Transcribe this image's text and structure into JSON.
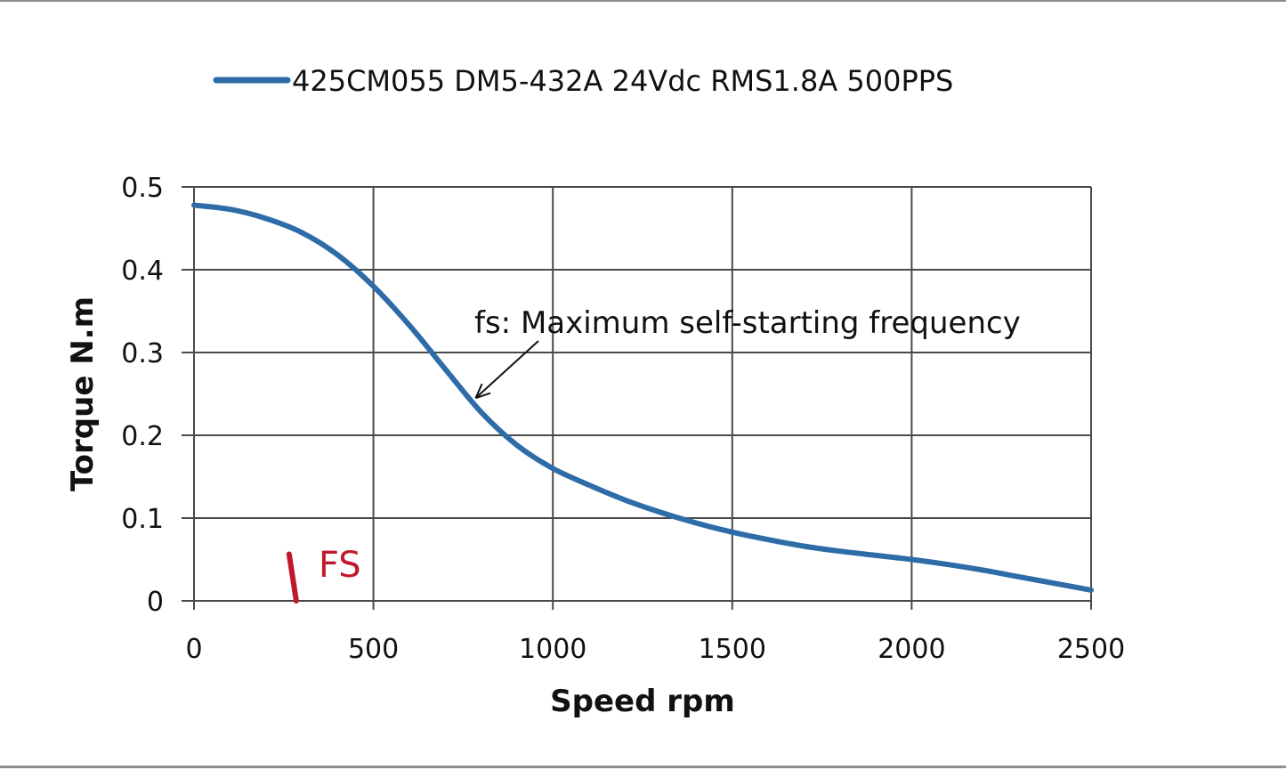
{
  "chart_data": {
    "type": "line",
    "title": "",
    "xlabel": "Speed rpm",
    "ylabel": "Torque N.m",
    "xlim": [
      0,
      2500
    ],
    "ylim": [
      0,
      0.5
    ],
    "x_ticks": [
      "0",
      "500",
      "1000",
      "1500",
      "2000",
      "2500"
    ],
    "y_ticks": [
      "0",
      "0.1",
      "0.2",
      "0.3",
      "0.4",
      "0.5"
    ],
    "grid": true,
    "legend_position": "top",
    "series": [
      {
        "name": "425CM055 DM5-432A 24Vdc RMS1.8A 500PPS",
        "color": "#2e6ca8",
        "x": [
          0,
          100,
          200,
          300,
          400,
          500,
          600,
          700,
          800,
          900,
          1000,
          1100,
          1200,
          1300,
          1400,
          1500,
          1600,
          1700,
          1800,
          1900,
          2000,
          2100,
          2200,
          2300,
          2400,
          2500
        ],
        "y": [
          0.478,
          0.473,
          0.462,
          0.445,
          0.418,
          0.38,
          0.333,
          0.28,
          0.228,
          0.188,
          0.16,
          0.14,
          0.122,
          0.107,
          0.094,
          0.083,
          0.074,
          0.066,
          0.06,
          0.055,
          0.05,
          0.044,
          0.037,
          0.029,
          0.021,
          0.013
        ]
      }
    ],
    "annotations": [
      {
        "text": "fs: Maximum self-starting frequency",
        "arrow_target": {
          "x": 785,
          "y": 0.245
        }
      },
      {
        "text": "FS",
        "color": "#c0192b",
        "marker_x": [
          265,
          285
        ],
        "marker_y": [
          0.05,
          0.0
        ]
      }
    ]
  }
}
